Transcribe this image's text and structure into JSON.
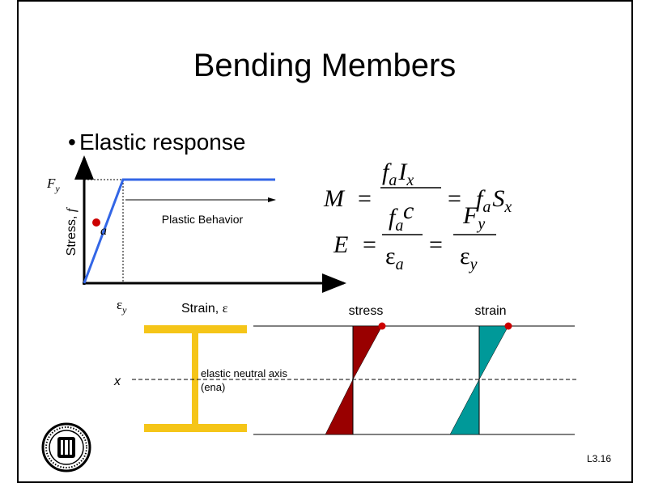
{
  "title": "Bending Members",
  "bullet": {
    "marker": "•",
    "text": "Elastic response"
  },
  "equation_1": {
    "lhs": "M",
    "equals": "=",
    "numerator": [
      "f",
      "a",
      "I",
      "x"
    ],
    "denominator": "c",
    "rhs": [
      "f",
      "a",
      "S",
      "x"
    ]
  },
  "equation_2": {
    "lhs": "E",
    "equals": "=",
    "fraction_1": {
      "numerator": [
        "f",
        "a"
      ],
      "denominator": [
        "ε",
        "a"
      ]
    },
    "fraction_2": {
      "numerator": [
        "F",
        "y"
      ],
      "denominator": [
        "ε",
        "y"
      ]
    }
  },
  "graph": {
    "y_label": "Stress, ",
    "y_symbol": "f",
    "fy_label": [
      "F",
      "y"
    ],
    "point_label": "a",
    "plastic_label": "Plastic Behavior",
    "ey_label": [
      "ε",
      "y"
    ],
    "x_label": "Strain, ",
    "x_symbol": "ε"
  },
  "section": {
    "axis_symbol": "x",
    "axis_label": [
      "elastic neutral axis",
      "(ena)"
    ],
    "stress_label": "stress",
    "strain_label": "strain"
  },
  "slide_number": "L3.16"
}
